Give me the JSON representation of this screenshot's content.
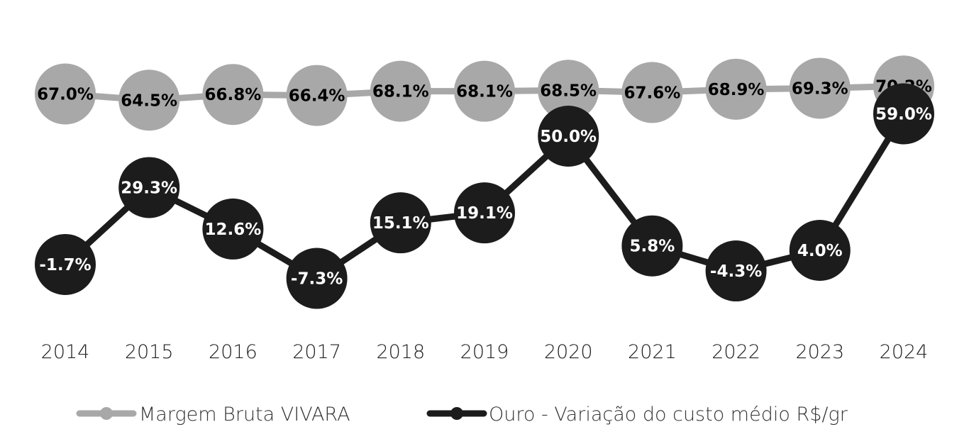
{
  "chart_data": {
    "type": "line",
    "title": "",
    "xlabel": "",
    "ylabel": "",
    "x": [
      "2014",
      "2015",
      "2016",
      "2017",
      "2018",
      "2019",
      "2020",
      "2021",
      "2022",
      "2023",
      "2024"
    ],
    "ylim": [
      -10,
      75
    ],
    "grid": false,
    "legend_position": "bottom",
    "series": [
      {
        "name": "Margem Bruta VIVARA",
        "values": [
          67.0,
          64.5,
          66.8,
          66.4,
          68.1,
          68.1,
          68.5,
          67.6,
          68.9,
          69.3,
          70.2
        ],
        "labels": [
          "67.0%",
          "64.5%",
          "66.8%",
          "66.4%",
          "68.1%",
          "68.1%",
          "68.5%",
          "67.6%",
          "68.9%",
          "69.3%",
          "70.2%"
        ],
        "color": "#a8a8a8",
        "label_color": "#000000"
      },
      {
        "name": "Ouro - Variação do custo médio R$/gr",
        "values": [
          -1.7,
          29.3,
          12.6,
          -7.3,
          15.1,
          19.1,
          50.0,
          5.8,
          -4.3,
          4.0,
          59.0
        ],
        "labels": [
          "-1.7%",
          "29.3%",
          "12.6%",
          "-7.3%",
          "15.1%",
          "19.1%",
          "50.0%",
          "5.8%",
          "-4.3%",
          "4.0%",
          "59.0%"
        ],
        "color": "#1c1c1c",
        "label_color": "#ffffff"
      }
    ]
  }
}
